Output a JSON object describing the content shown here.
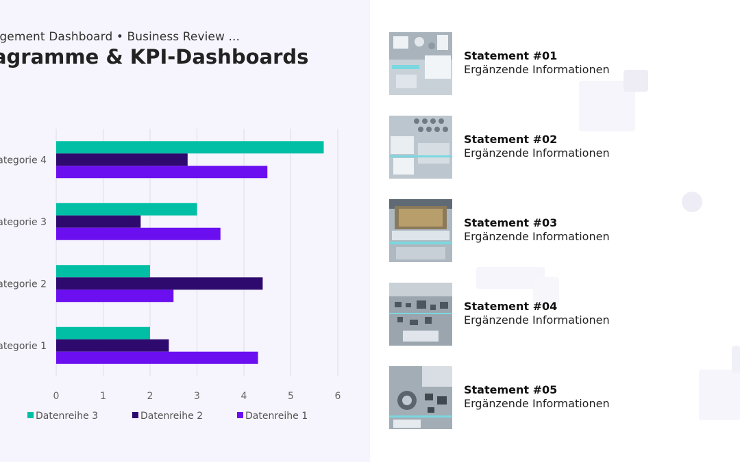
{
  "header": {
    "subtitle": "nagement Dashboard • Business Review ...",
    "title": "iagramme & KPI-Dashboards"
  },
  "chart_data": {
    "type": "bar",
    "orientation": "horizontal",
    "categories": [
      "ategorie 1",
      "ategorie 2",
      "ategorie 3",
      "ategorie 4"
    ],
    "series": [
      {
        "name": "Datenreihe 3",
        "color": "#00bfa5",
        "values": [
          2,
          2,
          3,
          5.7
        ]
      },
      {
        "name": "Datenreihe 2",
        "color": "#2e0a6e",
        "values": [
          2.4,
          4.4,
          1.8,
          2.8
        ]
      },
      {
        "name": "Datenreihe 1",
        "color": "#6b0ff0",
        "values": [
          4.3,
          2.5,
          3.5,
          4.5
        ]
      }
    ],
    "xlim": [
      0,
      6
    ],
    "xticks": [
      "0",
      "1",
      "2",
      "3",
      "4",
      "5",
      "6"
    ],
    "grid": true,
    "legend_position": "bottom"
  },
  "statements": [
    {
      "title": "Statement #01",
      "subtitle": "Ergänzende Informationen",
      "image": "circuit-board-photo"
    },
    {
      "title": "Statement #02",
      "subtitle": "Ergänzende Informationen",
      "image": "circuit-board-photo"
    },
    {
      "title": "Statement #03",
      "subtitle": "Ergänzende Informationen",
      "image": "cpu-chip-photo"
    },
    {
      "title": "Statement #04",
      "subtitle": "Ergänzende Informationen",
      "image": "circuit-board-photo"
    },
    {
      "title": "Statement #05",
      "subtitle": "Ergänzende Informationen",
      "image": "circuit-board-photo"
    }
  ]
}
